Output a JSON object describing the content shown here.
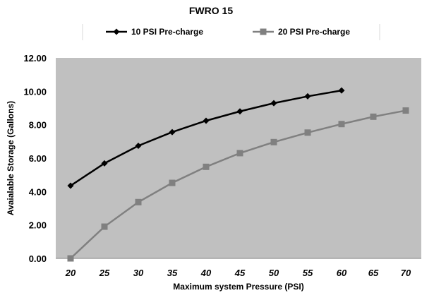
{
  "chart_data": {
    "type": "line",
    "title": "FWRO 15",
    "xlabel": "Maximum system Pressure (PSI)",
    "ylabel": "Avaialable Storage (Gallons)",
    "ylim": [
      0,
      12
    ],
    "xlim": [
      20,
      70
    ],
    "y_ticks": [
      "0.00",
      "2.00",
      "4.00",
      "6.00",
      "8.00",
      "10.00",
      "12.00"
    ],
    "x_ticks": [
      "20",
      "25",
      "30",
      "35",
      "40",
      "45",
      "50",
      "55",
      "60",
      "65",
      "70"
    ],
    "grid": false,
    "plot_background": "#c0c0c0",
    "legend_position": "top",
    "series": [
      {
        "name": "10 PSI Pre-charge",
        "color": "#000000",
        "marker": "diamond",
        "x": [
          20,
          25,
          30,
          35,
          40,
          45,
          50,
          55,
          60
        ],
        "values": [
          4.35,
          5.69,
          6.74,
          7.56,
          8.24,
          8.8,
          9.29,
          9.7,
          10.05
        ]
      },
      {
        "name": "20 PSI Pre-charge",
        "color": "#808080",
        "marker": "square",
        "x": [
          20,
          25,
          30,
          35,
          40,
          45,
          50,
          55,
          60,
          65,
          70
        ],
        "values": [
          0.0,
          1.9,
          3.37,
          4.52,
          5.48,
          6.3,
          6.96,
          7.53,
          8.04,
          8.48,
          8.85
        ]
      }
    ]
  }
}
